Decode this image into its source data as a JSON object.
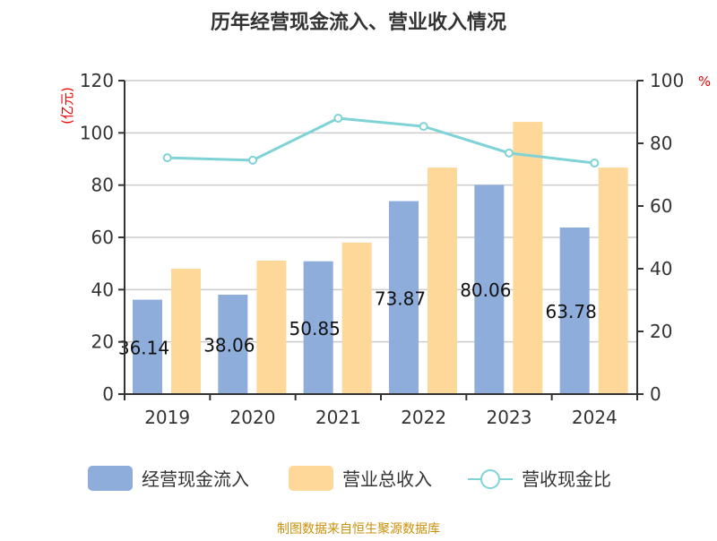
{
  "chart_data": {
    "type": "bar",
    "title": "历年经营现金流入、营业收入情况",
    "categories": [
      "2019",
      "2020",
      "2021",
      "2022",
      "2023",
      "2024"
    ],
    "y_left": {
      "label": "(亿元)",
      "lim": [
        0,
        120
      ],
      "ticks": [
        0,
        20,
        40,
        60,
        80,
        100,
        120
      ]
    },
    "y_right": {
      "label": "%",
      "lim": [
        0,
        100
      ],
      "ticks": [
        0,
        20,
        40,
        60,
        80,
        100
      ]
    },
    "grid": true,
    "legend_position": "bottom",
    "series": [
      {
        "name": "经营现金流入",
        "type": "bar",
        "axis": "left",
        "color": "#8eaddb",
        "values": [
          36.14,
          38.06,
          50.85,
          73.87,
          80.06,
          63.78
        ],
        "labels": [
          "36.14",
          "38.06",
          "50.85",
          "73.87",
          "80.06",
          "63.78"
        ]
      },
      {
        "name": "营业总收入",
        "type": "bar",
        "axis": "left",
        "color": "#fed899",
        "values": [
          48.0,
          51.1,
          58.0,
          86.7,
          104.2,
          86.7
        ]
      },
      {
        "name": "营收现金比",
        "type": "line",
        "axis": "right",
        "color": "#7fd3d6",
        "values": [
          75.4,
          74.6,
          88.0,
          85.4,
          76.9,
          73.7
        ]
      }
    ]
  },
  "source": "制图数据来自恒生聚源数据库"
}
